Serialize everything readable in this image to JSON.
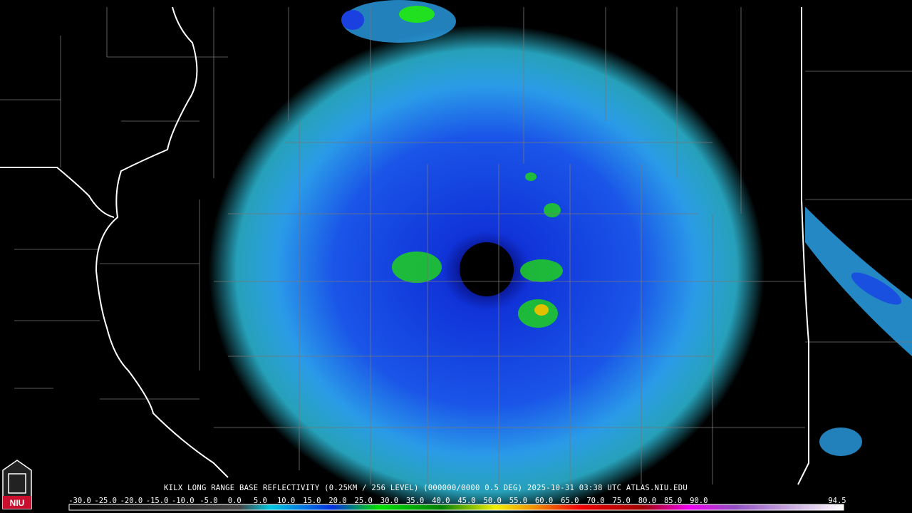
{
  "caption": "KILX LONG RANGE BASE REFLECTIVITY (0.25KM / 256 LEVEL) (000000/0000 0.5 DEG) 2025-10-31 03:38 UTC  ATLAS.NIU.EDU",
  "legend": {
    "labels": [
      "-30.0",
      "-25.0",
      "-20.0",
      "-15.0",
      "-10.0",
      "-5.0",
      "0.0",
      "5.0",
      "10.0",
      "15.0",
      "20.0",
      "25.0",
      "30.0",
      "35.0",
      "40.0",
      "45.0",
      "50.0",
      "55.0",
      "60.0",
      "65.0",
      "70.0",
      "75.0",
      "80.0",
      "85.0",
      "90.0",
      "94.5"
    ]
  },
  "logo": "NIU"
}
